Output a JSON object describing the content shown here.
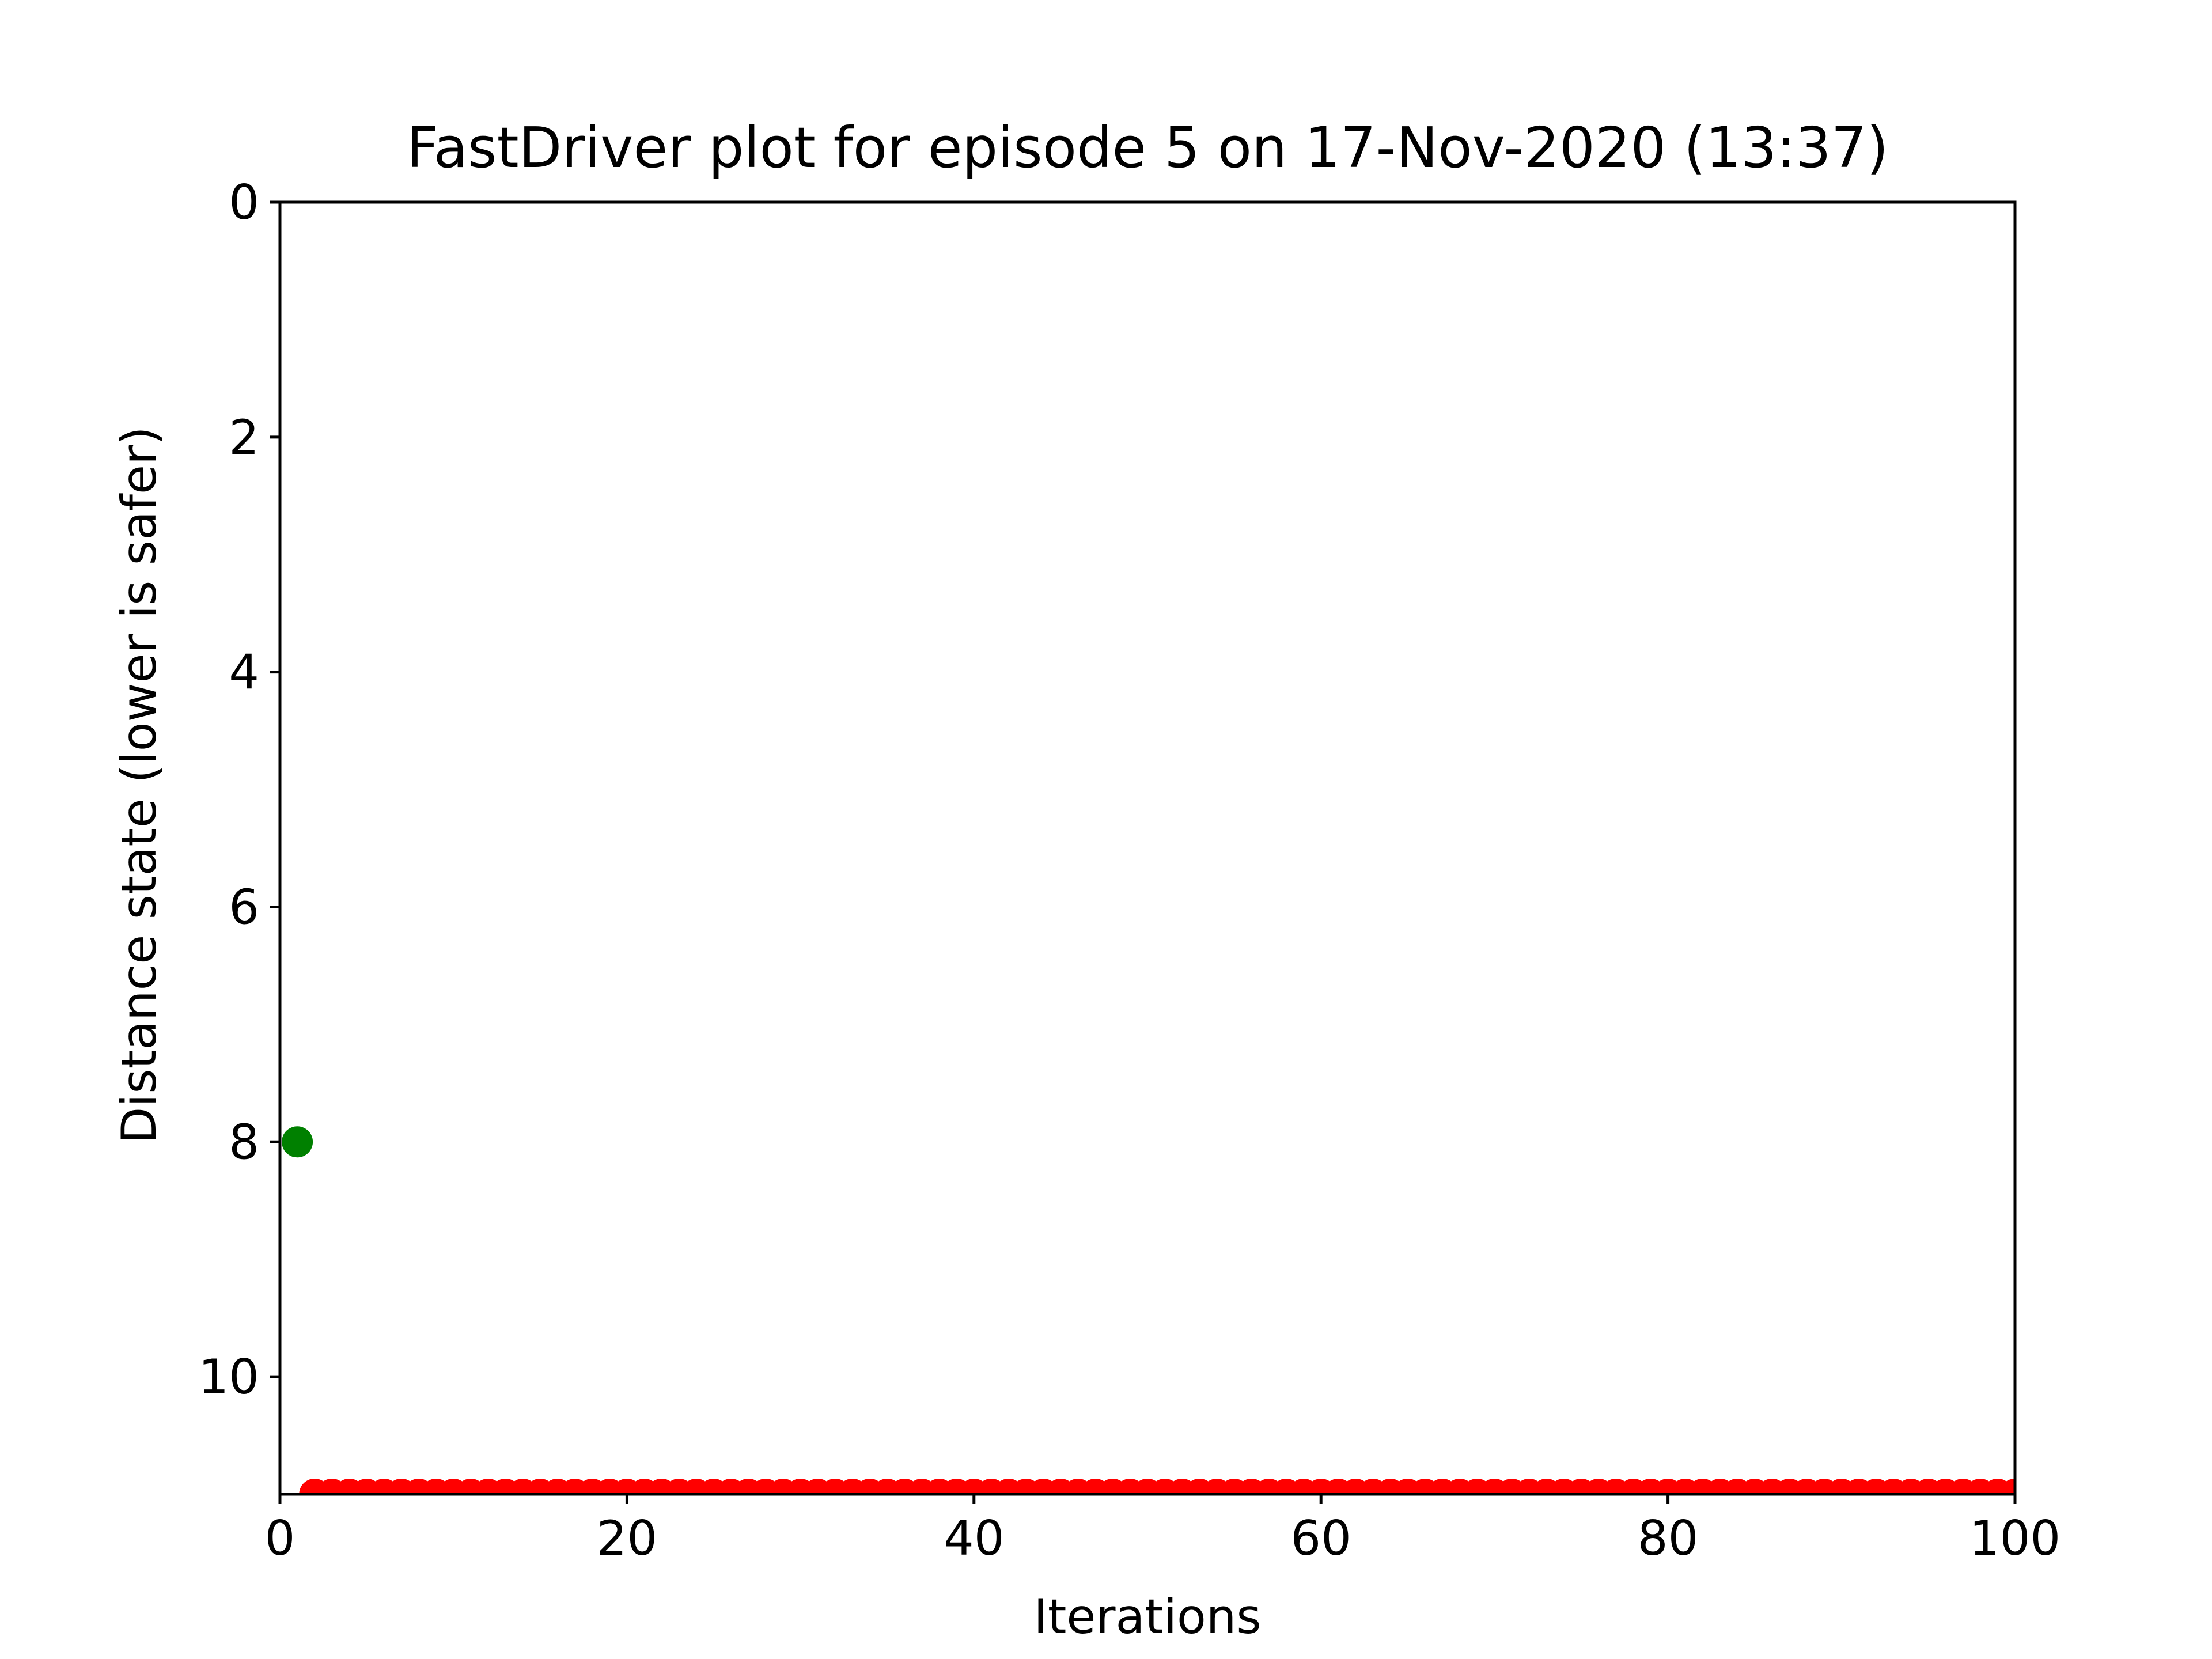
{
  "chart_data": {
    "type": "scatter",
    "title": "FastDriver plot for episode 5 on 17-Nov-2020 (13:37)",
    "xlabel": "Iterations",
    "ylabel": "Distance state (lower is safer)",
    "xlim": [
      0,
      100
    ],
    "ylim": [
      11,
      0
    ],
    "y_inverted": true,
    "x_ticks": [
      0,
      20,
      40,
      60,
      80,
      100
    ],
    "y_ticks": [
      0,
      2,
      4,
      6,
      8,
      10
    ],
    "grid": false,
    "series": [
      {
        "color": "#008000",
        "points": [
          [
            1,
            8
          ]
        ]
      },
      {
        "color": "#ff0000",
        "x_range": [
          2,
          100
        ],
        "x_step": 1,
        "y": 11
      }
    ]
  }
}
